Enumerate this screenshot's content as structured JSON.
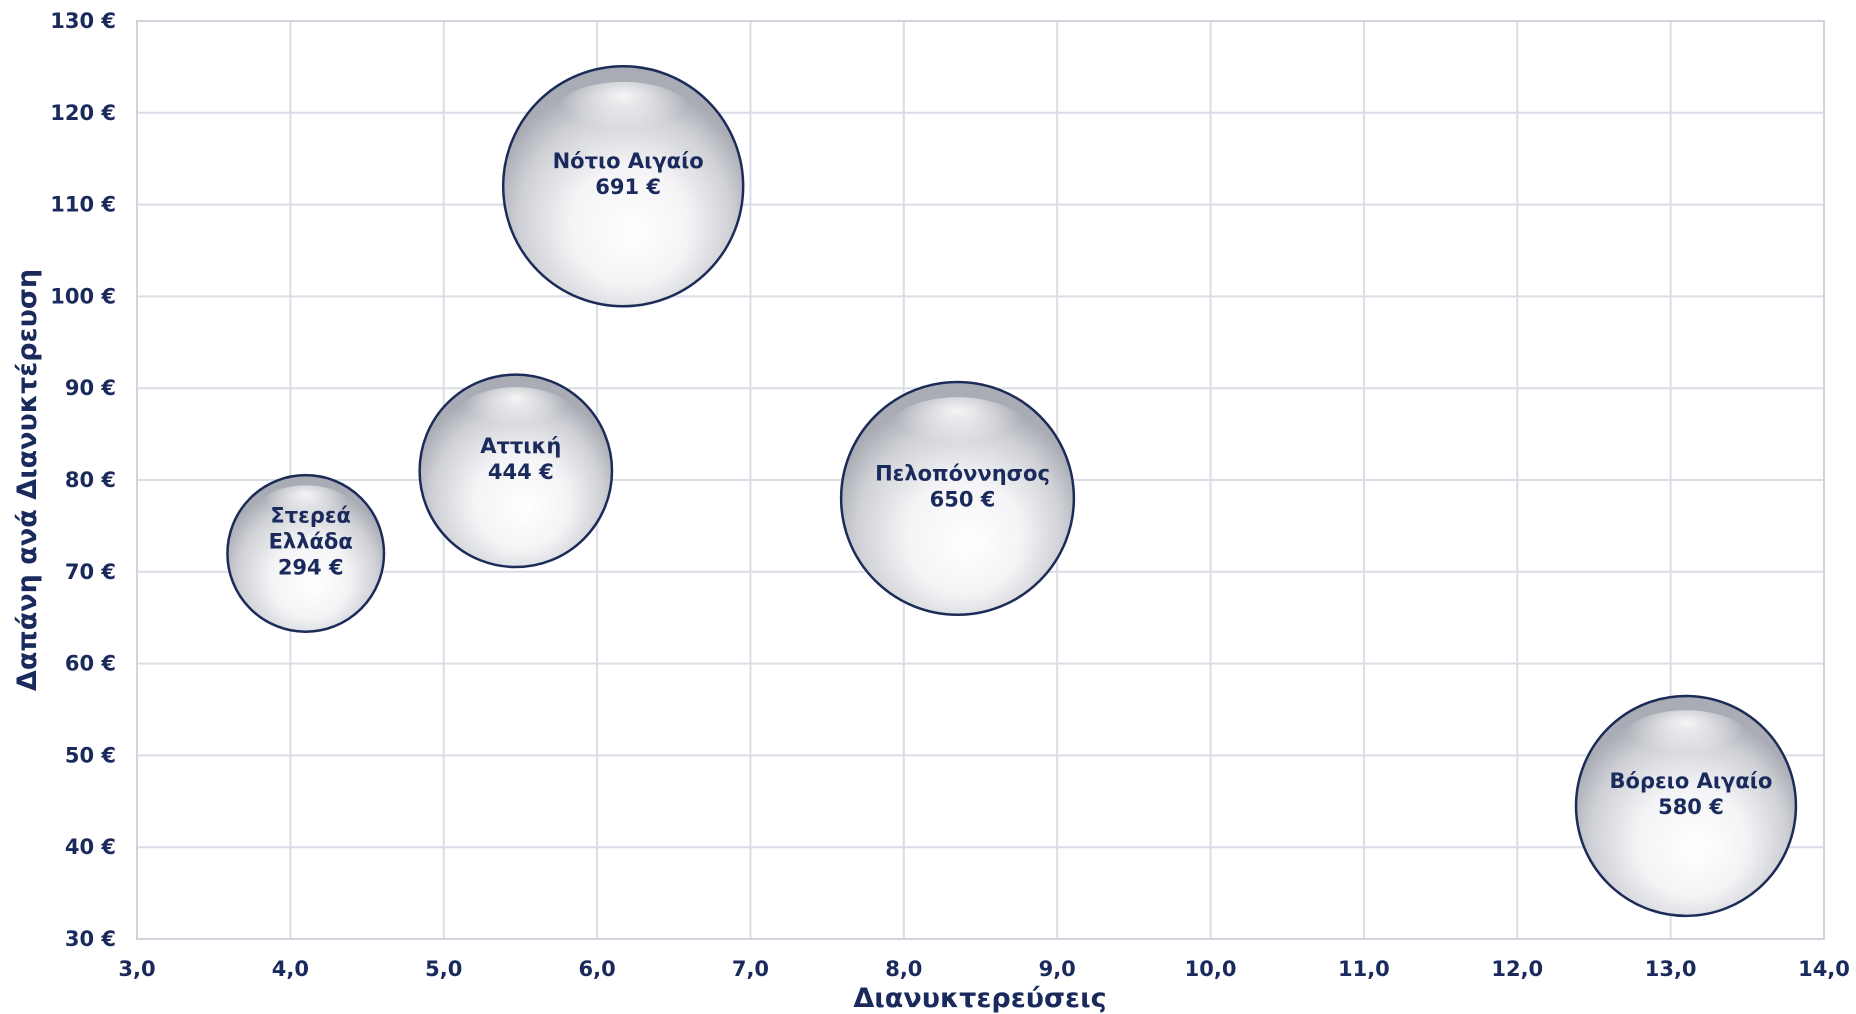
{
  "chart_data": {
    "type": "bubble",
    "xlabel": "Διανυκτερεύσεις",
    "ylabel": "Δαπάνη ανά Διανυκτέρευση",
    "xlim": [
      3,
      14
    ],
    "ylim": [
      30,
      130
    ],
    "x_ticks": [
      "3,0",
      "4,0",
      "5,0",
      "6,0",
      "7,0",
      "8,0",
      "9,0",
      "10,0",
      "11,0",
      "12,0",
      "13,0",
      "14,0"
    ],
    "y_ticks": [
      "30 €",
      "40 €",
      "50 €",
      "60 €",
      "70 €",
      "80 €",
      "90 €",
      "100 €",
      "110 €",
      "120 €",
      "130 €"
    ],
    "grid": true,
    "points": [
      {
        "label_lines": [
          "Στερεά",
          "Ελλάδα",
          "294 €"
        ],
        "x": 4.1,
        "y": 72,
        "size": 294
      },
      {
        "label_lines": [
          "Αττική",
          "444 €"
        ],
        "x": 5.47,
        "y": 81,
        "size": 444
      },
      {
        "label_lines": [
          "Νότιο Αιγαίο",
          "691 €"
        ],
        "x": 6.17,
        "y": 112,
        "size": 691
      },
      {
        "label_lines": [
          "Πελοπόννησος",
          "650 €"
        ],
        "x": 8.35,
        "y": 78,
        "size": 650
      },
      {
        "label_lines": [
          "Βόρειο Αιγαίο",
          "580 €"
        ],
        "x": 13.1,
        "y": 44.5,
        "size": 580
      }
    ],
    "colors": {
      "bubble_edge": "#1c2b58",
      "text": "#1a2a5c",
      "grid": "#d9dde6"
    }
  }
}
